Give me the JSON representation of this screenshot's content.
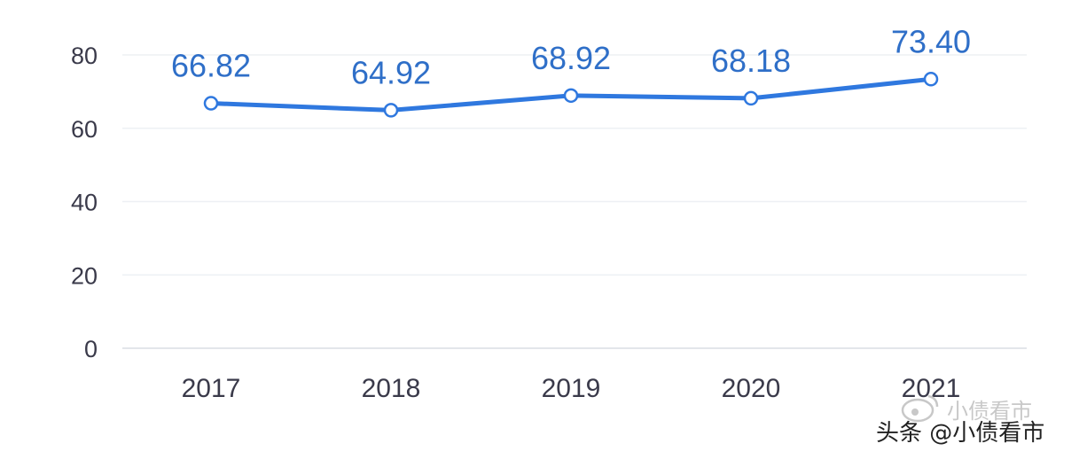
{
  "chart_data": {
    "type": "line",
    "categories": [
      "2017",
      "2018",
      "2019",
      "2020",
      "2021"
    ],
    "series": [
      {
        "values": [
          66.82,
          64.92,
          68.92,
          68.18,
          73.4
        ],
        "labels": [
          "66.82",
          "64.92",
          "68.92",
          "68.18",
          "73.40"
        ]
      }
    ],
    "ylim": [
      0,
      80
    ],
    "yticks": [
      "0",
      "20",
      "40",
      "60",
      "80"
    ],
    "grid": true,
    "legend": "none",
    "colors": {
      "line": "#2f78df",
      "marker_fill": "#ffffff",
      "label": "#2f6fc8",
      "grid": "#eef0f4",
      "axis": "#e3e6ea"
    }
  },
  "watermark": {
    "faint": "小债看市",
    "source": "头条 @小债看市"
  }
}
